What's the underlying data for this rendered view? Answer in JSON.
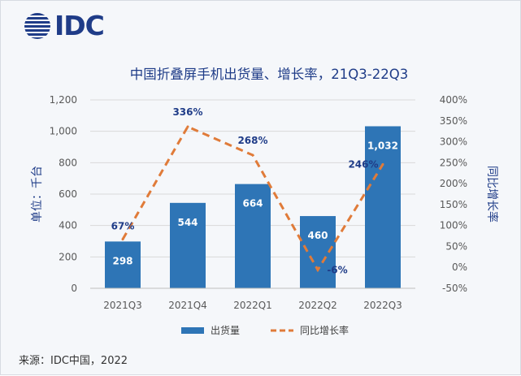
{
  "brand": {
    "logo_text": "IDC",
    "logo_color": "#1f3c88"
  },
  "source_note": "来源：IDC中国，2022",
  "chart_data": {
    "type": "bar",
    "title": "中国折叠屏手机出货量、增长率，21Q3-22Q3",
    "categories": [
      "2021Q3",
      "2021Q4",
      "2022Q1",
      "2022Q2",
      "2022Q3"
    ],
    "ylabel": "单位：千台",
    "ylabel_right": "同比增长率",
    "ylim": [
      0,
      1200
    ],
    "yticks": [
      "0",
      "200",
      "400",
      "600",
      "800",
      "1,000",
      "1,200"
    ],
    "ylim_right": [
      -50,
      400
    ],
    "yticks_right": [
      "-50%",
      "0%",
      "50%",
      "100%",
      "150%",
      "200%",
      "250%",
      "300%",
      "350%",
      "400%"
    ],
    "grid": true,
    "legend_position": "bottom",
    "series": [
      {
        "name": "出货量",
        "type": "bar",
        "axis": "left",
        "values": [
          298,
          544,
          664,
          460,
          1032
        ],
        "labels": [
          "298",
          "544",
          "664",
          "460",
          "1,032"
        ],
        "color": "#2e75b6"
      },
      {
        "name": "同比增长率",
        "type": "line",
        "style": "dashed",
        "axis": "right",
        "values": [
          67,
          336,
          268,
          -6,
          246
        ],
        "labels": [
          "67%",
          "336%",
          "268%",
          "-6%",
          "246%"
        ],
        "color": "#e07b39"
      }
    ]
  }
}
